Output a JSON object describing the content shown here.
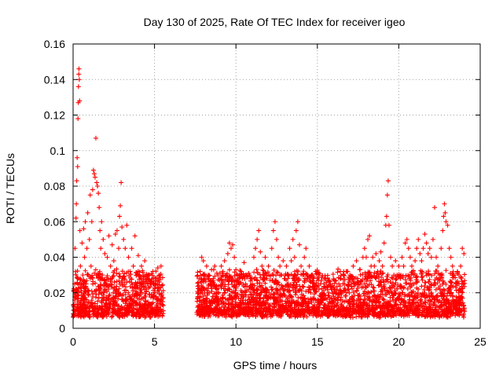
{
  "chart_data": {
    "type": "scatter",
    "title": "Day 130 of 2025, Rate Of TEC Index for receiver igeo",
    "xlabel": "GPS time / hours",
    "ylabel": "ROTI / TECUs",
    "xlim": [
      0,
      25
    ],
    "ylim": [
      0,
      0.16
    ],
    "xticks": [
      0,
      5,
      10,
      15,
      20,
      25
    ],
    "xtick_labels": [
      "0",
      "5",
      "10",
      "15",
      "20",
      "25"
    ],
    "yticks": [
      0,
      0.02,
      0.04,
      0.06,
      0.08,
      0.1,
      0.12,
      0.14,
      0.16
    ],
    "ytick_labels": [
      "0",
      "0.02",
      "0.04",
      "0.06",
      "0.08",
      "0.1",
      "0.12",
      "0.14",
      "0.16"
    ],
    "grid": true,
    "marker": "+",
    "color": "#ff0000",
    "series": [
      {
        "points": [
          [
            0.05,
            0.012
          ],
          [
            0.1,
            0.025
          ],
          [
            0.12,
            0.045
          ],
          [
            0.15,
            0.018
          ],
          [
            0.18,
            0.062
          ],
          [
            0.2,
            0.07
          ],
          [
            0.22,
            0.083
          ],
          [
            0.25,
            0.096
          ],
          [
            0.28,
            0.091
          ],
          [
            0.3,
            0.118
          ],
          [
            0.32,
            0.127
          ],
          [
            0.33,
            0.136
          ],
          [
            0.35,
            0.143
          ],
          [
            0.36,
            0.146
          ],
          [
            0.38,
            0.14
          ],
          [
            0.4,
            0.128
          ],
          [
            0.42,
            0.055
          ],
          [
            0.45,
            0.035
          ],
          [
            0.5,
            0.02
          ],
          [
            0.55,
            0.048
          ],
          [
            0.6,
            0.03
          ],
          [
            0.65,
            0.056
          ],
          [
            0.7,
            0.04
          ],
          [
            0.75,
            0.06
          ],
          [
            0.8,
            0.025
          ],
          [
            0.85,
            0.045
          ],
          [
            0.9,
            0.065
          ],
          [
            0.95,
            0.03
          ],
          [
            1.0,
            0.05
          ],
          [
            1.05,
            0.075
          ],
          [
            1.1,
            0.035
          ],
          [
            1.15,
            0.06
          ],
          [
            1.2,
            0.078
          ],
          [
            1.25,
            0.089
          ],
          [
            1.3,
            0.087
          ],
          [
            1.35,
            0.085
          ],
          [
            1.4,
            0.107
          ],
          [
            1.45,
            0.082
          ],
          [
            1.5,
            0.08
          ],
          [
            1.55,
            0.076
          ],
          [
            1.6,
            0.068
          ],
          [
            1.65,
            0.055
          ],
          [
            1.7,
            0.045
          ],
          [
            1.75,
            0.06
          ],
          [
            1.8,
            0.03
          ],
          [
            1.85,
            0.05
          ],
          [
            1.9,
            0.02
          ],
          [
            1.95,
            0.042
          ],
          [
            2.0,
            0.025
          ],
          [
            2.1,
            0.04
          ],
          [
            2.2,
            0.052
          ],
          [
            2.3,
            0.035
          ],
          [
            2.4,
            0.047
          ],
          [
            2.5,
            0.038
          ],
          [
            2.6,
            0.053
          ],
          [
            2.7,
            0.055
          ],
          [
            2.8,
            0.045
          ],
          [
            2.85,
            0.063
          ],
          [
            2.9,
            0.069
          ],
          [
            2.95,
            0.082
          ],
          [
            3.0,
            0.057
          ],
          [
            3.1,
            0.05
          ],
          [
            3.2,
            0.045
          ],
          [
            3.3,
            0.058
          ],
          [
            3.4,
            0.04
          ],
          [
            3.5,
            0.032
          ],
          [
            3.6,
            0.045
          ],
          [
            3.7,
            0.035
          ],
          [
            3.8,
            0.052
          ],
          [
            3.9,
            0.03
          ],
          [
            4.0,
            0.041
          ],
          [
            4.1,
            0.025
          ],
          [
            4.2,
            0.035
          ],
          [
            4.3,
            0.03
          ],
          [
            4.4,
            0.038
          ],
          [
            4.5,
            0.022
          ],
          [
            4.6,
            0.03
          ],
          [
            4.7,
            0.027
          ],
          [
            4.8,
            0.025
          ],
          [
            4.9,
            0.032
          ],
          [
            5.0,
            0.02
          ],
          [
            5.1,
            0.025
          ],
          [
            5.2,
            0.034
          ],
          [
            5.3,
            0.03
          ],
          [
            5.4,
            0.035
          ],
          [
            5.5,
            0.015
          ],
          [
            7.7,
            0.02
          ],
          [
            7.8,
            0.032
          ],
          [
            7.9,
            0.04
          ],
          [
            8.0,
            0.038
          ],
          [
            8.1,
            0.028
          ],
          [
            8.2,
            0.035
          ],
          [
            8.3,
            0.03
          ],
          [
            8.4,
            0.025
          ],
          [
            8.5,
            0.033
          ],
          [
            8.6,
            0.027
          ],
          [
            8.7,
            0.035
          ],
          [
            8.8,
            0.024
          ],
          [
            8.9,
            0.03
          ],
          [
            9.0,
            0.027
          ],
          [
            9.1,
            0.035
          ],
          [
            9.2,
            0.032
          ],
          [
            9.3,
            0.038
          ],
          [
            9.4,
            0.03
          ],
          [
            9.5,
            0.042
          ],
          [
            9.6,
            0.048
          ],
          [
            9.7,
            0.045
          ],
          [
            9.8,
            0.047
          ],
          [
            9.9,
            0.04
          ],
          [
            10.0,
            0.033
          ],
          [
            10.1,
            0.03
          ],
          [
            10.2,
            0.025
          ],
          [
            10.3,
            0.032
          ],
          [
            10.4,
            0.028
          ],
          [
            10.5,
            0.037
          ],
          [
            10.6,
            0.025
          ],
          [
            10.7,
            0.03
          ],
          [
            10.8,
            0.022
          ],
          [
            10.9,
            0.028
          ],
          [
            11.0,
            0.025
          ],
          [
            11.1,
            0.04
          ],
          [
            11.2,
            0.045
          ],
          [
            11.3,
            0.05
          ],
          [
            11.4,
            0.055
          ],
          [
            11.5,
            0.043
          ],
          [
            11.6,
            0.035
          ],
          [
            11.7,
            0.03
          ],
          [
            11.8,
            0.04
          ],
          [
            11.9,
            0.028
          ],
          [
            12.0,
            0.035
          ],
          [
            12.1,
            0.027
          ],
          [
            12.2,
            0.045
          ],
          [
            12.3,
            0.055
          ],
          [
            12.4,
            0.06
          ],
          [
            12.5,
            0.05
          ],
          [
            12.6,
            0.04
          ],
          [
            12.7,
            0.035
          ],
          [
            12.8,
            0.03
          ],
          [
            12.9,
            0.038
          ],
          [
            13.0,
            0.028
          ],
          [
            13.1,
            0.035
          ],
          [
            13.2,
            0.03
          ],
          [
            13.3,
            0.045
          ],
          [
            13.4,
            0.038
          ],
          [
            13.5,
            0.05
          ],
          [
            13.6,
            0.04
          ],
          [
            13.7,
            0.055
          ],
          [
            13.8,
            0.06
          ],
          [
            13.9,
            0.047
          ],
          [
            14.0,
            0.035
          ],
          [
            14.1,
            0.03
          ],
          [
            14.2,
            0.04
          ],
          [
            14.3,
            0.045
          ],
          [
            14.4,
            0.03
          ],
          [
            14.5,
            0.035
          ],
          [
            14.6,
            0.026
          ],
          [
            14.7,
            0.03
          ],
          [
            14.8,
            0.025
          ],
          [
            14.9,
            0.032
          ],
          [
            15.0,
            0.028
          ],
          [
            15.1,
            0.022
          ],
          [
            15.2,
            0.025
          ],
          [
            15.3,
            0.02
          ],
          [
            15.4,
            0.025
          ],
          [
            15.5,
            0.028
          ],
          [
            15.6,
            0.023
          ],
          [
            15.7,
            0.02
          ],
          [
            15.8,
            0.025
          ],
          [
            15.9,
            0.022
          ],
          [
            16.0,
            0.018
          ],
          [
            16.2,
            0.022
          ],
          [
            16.4,
            0.028
          ],
          [
            16.6,
            0.03
          ],
          [
            16.8,
            0.032
          ],
          [
            17.0,
            0.03
          ],
          [
            17.2,
            0.035
          ],
          [
            17.4,
            0.038
          ],
          [
            17.6,
            0.033
          ],
          [
            17.8,
            0.04
          ],
          [
            17.9,
            0.045
          ],
          [
            18.0,
            0.04
          ],
          [
            18.1,
            0.05
          ],
          [
            18.2,
            0.052
          ],
          [
            18.3,
            0.035
          ],
          [
            18.4,
            0.04
          ],
          [
            18.5,
            0.035
          ],
          [
            18.6,
            0.042
          ],
          [
            18.7,
            0.032
          ],
          [
            18.8,
            0.038
          ],
          [
            18.9,
            0.043
          ],
          [
            19.0,
            0.035
          ],
          [
            19.1,
            0.048
          ],
          [
            19.2,
            0.058
          ],
          [
            19.25,
            0.063
          ],
          [
            19.3,
            0.075
          ],
          [
            19.35,
            0.083
          ],
          [
            19.4,
            0.058
          ],
          [
            19.5,
            0.04
          ],
          [
            19.6,
            0.035
          ],
          [
            19.7,
            0.03
          ],
          [
            19.8,
            0.038
          ],
          [
            19.9,
            0.03
          ],
          [
            20.0,
            0.035
          ],
          [
            20.1,
            0.028
          ],
          [
            20.2,
            0.04
          ],
          [
            20.3,
            0.035
          ],
          [
            20.4,
            0.048
          ],
          [
            20.5,
            0.05
          ],
          [
            20.6,
            0.045
          ],
          [
            20.7,
            0.04
          ],
          [
            20.8,
            0.035
          ],
          [
            20.9,
            0.03
          ],
          [
            21.0,
            0.038
          ],
          [
            21.1,
            0.045
          ],
          [
            21.2,
            0.05
          ],
          [
            21.3,
            0.042
          ],
          [
            21.4,
            0.038
          ],
          [
            21.5,
            0.045
          ],
          [
            21.6,
            0.053
          ],
          [
            21.7,
            0.048
          ],
          [
            21.8,
            0.042
          ],
          [
            21.9,
            0.045
          ],
          [
            22.0,
            0.04
          ],
          [
            22.1,
            0.05
          ],
          [
            22.2,
            0.068
          ],
          [
            22.3,
            0.04
          ],
          [
            22.4,
            0.035
          ],
          [
            22.5,
            0.03
          ],
          [
            22.6,
            0.045
          ],
          [
            22.7,
            0.055
          ],
          [
            22.75,
            0.063
          ],
          [
            22.8,
            0.07
          ],
          [
            22.85,
            0.065
          ],
          [
            22.9,
            0.06
          ],
          [
            23.0,
            0.058
          ],
          [
            23.1,
            0.045
          ],
          [
            23.2,
            0.04
          ],
          [
            23.3,
            0.035
          ],
          [
            23.4,
            0.03
          ],
          [
            23.5,
            0.025
          ],
          [
            23.6,
            0.032
          ],
          [
            23.7,
            0.03
          ],
          [
            23.8,
            0.035
          ],
          [
            23.9,
            0.045
          ],
          [
            24.0,
            0.042
          ]
        ]
      }
    ]
  }
}
